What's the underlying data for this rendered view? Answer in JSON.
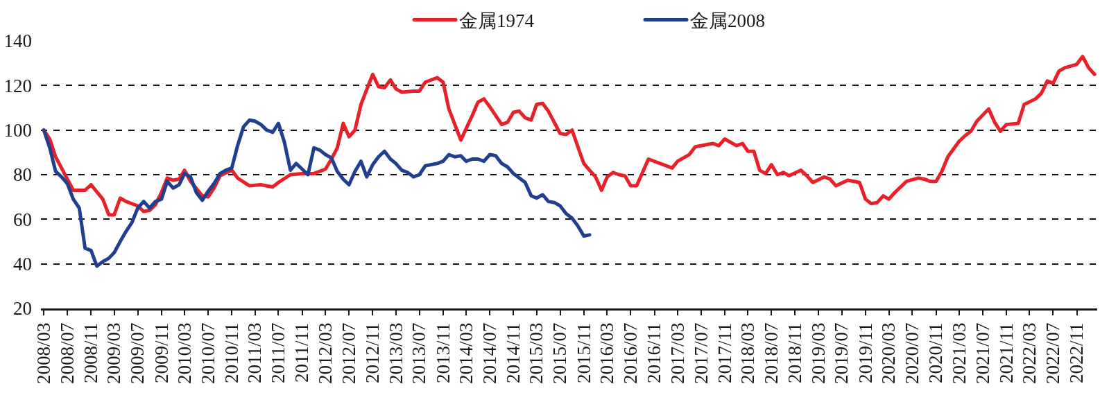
{
  "chart_data": {
    "type": "line",
    "legend": "top",
    "grid": "y",
    "line_style": "solid",
    "xlim": [
      "2008-02-15",
      "2023-02-15"
    ],
    "xticks": [
      {
        "value": "2008-03",
        "label": "2008/03"
      },
      {
        "value": "2008-07",
        "label": "2008/07"
      },
      {
        "value": "2008-11",
        "label": "2008/11"
      },
      {
        "value": "2009-03",
        "label": "2009/03"
      },
      {
        "value": "2009-07",
        "label": "2009/07"
      },
      {
        "value": "2009-11",
        "label": "2009/11"
      },
      {
        "value": "2010-03",
        "label": "2010/03"
      },
      {
        "value": "2010-07",
        "label": "2010/07"
      },
      {
        "value": "2010-11",
        "label": "2010/11"
      },
      {
        "value": "2011-03",
        "label": "2011/03"
      },
      {
        "value": "2011-07",
        "label": "2011/07"
      },
      {
        "value": "2011-11",
        "label": "2011/11"
      },
      {
        "value": "2012-03",
        "label": "2012/03"
      },
      {
        "value": "2012-07",
        "label": "2012/07"
      },
      {
        "value": "2012-11",
        "label": "2012/11"
      },
      {
        "value": "2013-03",
        "label": "2013/03"
      },
      {
        "value": "2013-07",
        "label": "2013/07"
      },
      {
        "value": "2013-11",
        "label": "2013/11"
      },
      {
        "value": "2014-03",
        "label": "2014/03"
      },
      {
        "value": "2014-07",
        "label": "2014/07"
      },
      {
        "value": "2014-11",
        "label": "2014/11"
      },
      {
        "value": "2015-03",
        "label": "2015/03"
      },
      {
        "value": "2015-07",
        "label": "2015/07"
      },
      {
        "value": "2015-11",
        "label": "2015/11"
      },
      {
        "value": "2016-03",
        "label": "2016/03"
      },
      {
        "value": "2016-07",
        "label": "2016/07"
      },
      {
        "value": "2016-11",
        "label": "2016/11"
      },
      {
        "value": "2017-03",
        "label": "2017/03"
      },
      {
        "value": "2017-07",
        "label": "2017/07"
      },
      {
        "value": "2017-11",
        "label": "2017/11"
      },
      {
        "value": "2018-03",
        "label": "2018/03"
      },
      {
        "value": "2018-07",
        "label": "2018/07"
      },
      {
        "value": "2018-11",
        "label": "2018/11"
      },
      {
        "value": "2019-03",
        "label": "2019/03"
      },
      {
        "value": "2019-07",
        "label": "2019/07"
      },
      {
        "value": "2019-11",
        "label": "2019/11"
      },
      {
        "value": "2020-03",
        "label": "2020/03"
      },
      {
        "value": "2020-07",
        "label": "2020/07"
      },
      {
        "value": "2020-11",
        "label": "2020/11"
      },
      {
        "value": "2021-03",
        "label": "2021/03"
      },
      {
        "value": "2021-07",
        "label": "2021/07"
      },
      {
        "value": "2021-11",
        "label": "2021/11"
      },
      {
        "value": "2022-03",
        "label": "2022/03"
      },
      {
        "value": "2022-07",
        "label": "2022/07"
      },
      {
        "value": "2022-11",
        "label": "2022/11"
      }
    ],
    "ylim": [
      20,
      140
    ],
    "yticks": [
      20,
      40,
      60,
      80,
      100,
      120,
      140
    ],
    "series": [
      {
        "name": "金属1974",
        "color": "#e6212a",
        "x": [
          "2008-03",
          "2008-04",
          "2008-05",
          "2008-06",
          "2008-07",
          "2008-08",
          "2008-10",
          "2008-11",
          "2009-01",
          "2009-02",
          "2009-03",
          "2009-04",
          "2009-05",
          "2009-07",
          "2009-08",
          "2009-09",
          "2009-10",
          "2009-11",
          "2009-12",
          "2010-01",
          "2010-02",
          "2010-03",
          "2010-04",
          "2010-06",
          "2010-07",
          "2010-08",
          "2010-09",
          "2010-11",
          "2010-12",
          "2011-02",
          "2011-04",
          "2011-06",
          "2011-07",
          "2011-09",
          "2011-11",
          "2012-01",
          "2012-03",
          "2012-04",
          "2012-05",
          "2012-06",
          "2012-07",
          "2012-08",
          "2012-09",
          "2012-11",
          "2012-12",
          "2013-01",
          "2013-02",
          "2013-03",
          "2013-04",
          "2013-06",
          "2013-07",
          "2013-08",
          "2013-10",
          "2013-11",
          "2013-12",
          "2014-02",
          "2014-04",
          "2014-05",
          "2014-06",
          "2014-07",
          "2014-09",
          "2014-10",
          "2014-11",
          "2014-12",
          "2015-01",
          "2015-02",
          "2015-03",
          "2015-04",
          "2015-05",
          "2015-07",
          "2015-08",
          "2015-09",
          "2015-10",
          "2015-11",
          "2015-12",
          "2016-01",
          "2016-02",
          "2016-03",
          "2016-04",
          "2016-05",
          "2016-06",
          "2016-07",
          "2016-08",
          "2016-10",
          "2016-12",
          "2017-02",
          "2017-03",
          "2017-05",
          "2017-06",
          "2017-08",
          "2017-09",
          "2017-10",
          "2017-11",
          "2018-01",
          "2018-02",
          "2018-03",
          "2018-04",
          "2018-05",
          "2018-06",
          "2018-07",
          "2018-08",
          "2018-09",
          "2018-10",
          "2018-12",
          "2019-01",
          "2019-02",
          "2019-04",
          "2019-05",
          "2019-06",
          "2019-08",
          "2019-10",
          "2019-11",
          "2019-12",
          "2020-01",
          "2020-02",
          "2020-03",
          "2020-04",
          "2020-06",
          "2020-08",
          "2020-09",
          "2020-10",
          "2020-11",
          "2020-12",
          "2021-01",
          "2021-03",
          "2021-04",
          "2021-05",
          "2021-06",
          "2021-08",
          "2021-09",
          "2021-10",
          "2021-11",
          "2022-01",
          "2022-02",
          "2022-04",
          "2022-05",
          "2022-06",
          "2022-07",
          "2022-08",
          "2022-09",
          "2022-11",
          "2022-12",
          "2023-01",
          "2023-02"
        ],
        "values": [
          100,
          96,
          88,
          83,
          78,
          73,
          73,
          75.5,
          69,
          62,
          62,
          69.5,
          68,
          66,
          63.5,
          64,
          66.5,
          72,
          78.5,
          77.5,
          78,
          82,
          77,
          70.5,
          70,
          74,
          79.5,
          82,
          78.5,
          75,
          75.5,
          74.5,
          76.5,
          80,
          80.5,
          80.5,
          82.5,
          87,
          92,
          103,
          97,
          100,
          111.5,
          125,
          119.5,
          119,
          122.5,
          118.5,
          117,
          117.5,
          117.5,
          121.5,
          123.5,
          121.5,
          109.5,
          95.5,
          106.5,
          112.5,
          114,
          110.5,
          102.5,
          103.5,
          108,
          108.5,
          105.5,
          104.5,
          111.5,
          112,
          108.5,
          98.5,
          98,
          100,
          92.5,
          85,
          82,
          79,
          73,
          79,
          81,
          80,
          79.5,
          75,
          75,
          87,
          85,
          83,
          86,
          89,
          92.5,
          93.5,
          94,
          93,
          96,
          93,
          94,
          90.5,
          90.5,
          82,
          80.5,
          84.5,
          80,
          81,
          79.5,
          82,
          79.5,
          76.5,
          79,
          78,
          75,
          77.5,
          76.5,
          69,
          67,
          67.5,
          70.5,
          69,
          72,
          77,
          78.5,
          78,
          77,
          77,
          81.5,
          88,
          95,
          97.5,
          99.5,
          104,
          109.5,
          103.5,
          99.5,
          102.5,
          103,
          111.5,
          114,
          116.5,
          122,
          121,
          126.5,
          128,
          129.5,
          133,
          128,
          125
        ]
      },
      {
        "name": "金属2008",
        "color": "#203f8f",
        "x": [
          "2008-03",
          "2008-04",
          "2008-05",
          "2008-06",
          "2008-07",
          "2008-08",
          "2008-09",
          "2008-10",
          "2008-11",
          "2008-12",
          "2009-01",
          "2009-02",
          "2009-03",
          "2009-04",
          "2009-05",
          "2009-06",
          "2009-07",
          "2009-08",
          "2009-09",
          "2009-10",
          "2009-11",
          "2009-12",
          "2010-01",
          "2010-02",
          "2010-03",
          "2010-04",
          "2010-05",
          "2010-06",
          "2010-07",
          "2010-08",
          "2010-09",
          "2010-10",
          "2010-11",
          "2010-12",
          "2011-01",
          "2011-02",
          "2011-03",
          "2011-04",
          "2011-05",
          "2011-06",
          "2011-07",
          "2011-08",
          "2011-09",
          "2011-10",
          "2011-11",
          "2011-12",
          "2012-01",
          "2012-02",
          "2012-03",
          "2012-04",
          "2012-05",
          "2012-06",
          "2012-07",
          "2012-08",
          "2012-09",
          "2012-10",
          "2012-11",
          "2012-12",
          "2013-01",
          "2013-02",
          "2013-03",
          "2013-04",
          "2013-05",
          "2013-06",
          "2013-07",
          "2013-08",
          "2013-09",
          "2013-10",
          "2013-11",
          "2013-12",
          "2014-01",
          "2014-02",
          "2014-03",
          "2014-04",
          "2014-05",
          "2014-06",
          "2014-07",
          "2014-08",
          "2014-09",
          "2014-10",
          "2014-11",
          "2015-01",
          "2015-02",
          "2015-03",
          "2015-04",
          "2015-05",
          "2015-06",
          "2015-07",
          "2015-08",
          "2015-09",
          "2015-10",
          "2015-11",
          "2015-12"
        ],
        "values": [
          100,
          92,
          81.5,
          79,
          76,
          69,
          65,
          47,
          46,
          39,
          41,
          42.5,
          45,
          50,
          54.5,
          58.5,
          65,
          68,
          65,
          68,
          69,
          77,
          74,
          75.5,
          80.5,
          79,
          72,
          68.5,
          72.5,
          76,
          80.5,
          82,
          83,
          93,
          101.5,
          104.5,
          104,
          102.5,
          100,
          99,
          103,
          94.5,
          82,
          85,
          82.5,
          80,
          92,
          91,
          89,
          87.5,
          81.5,
          78,
          75.5,
          81.5,
          86,
          79,
          84.5,
          88,
          90.5,
          87,
          85,
          82,
          81,
          79,
          80,
          84,
          84.5,
          85,
          86,
          89,
          88,
          88.5,
          86,
          87,
          87,
          86,
          89,
          88.5,
          85,
          83.5,
          80.5,
          76.5,
          70.5,
          69.5,
          71,
          68,
          67.5,
          66,
          62.5,
          60.5,
          57,
          52.5,
          53
        ]
      }
    ]
  }
}
